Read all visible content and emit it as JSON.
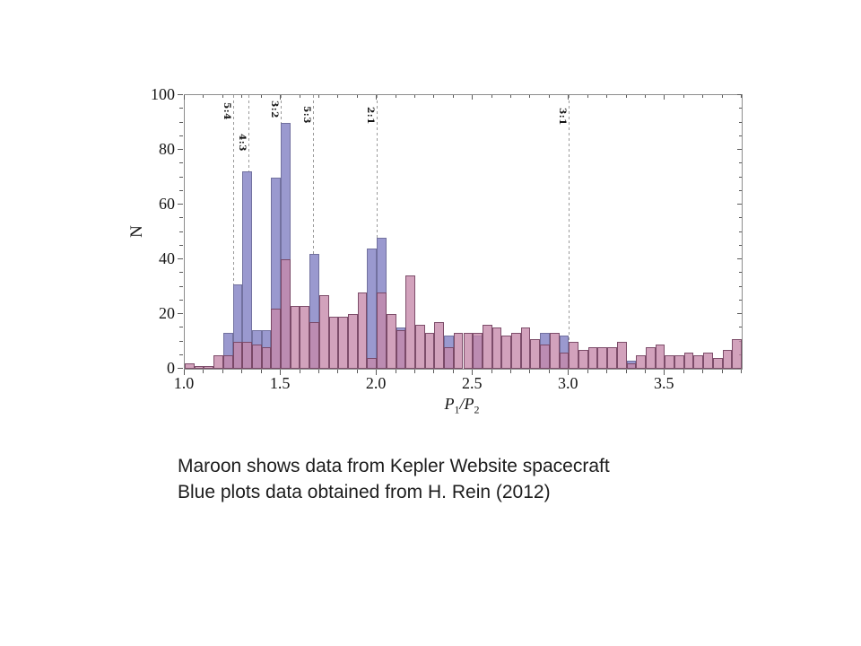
{
  "chart_data": {
    "type": "bar",
    "subtype": "overlaid-histogram",
    "title": "",
    "xlabel": "P1/P2",
    "xlabel_parts": {
      "p1_base": "P",
      "p1_sub": "1",
      "divider": "/",
      "p2_base": "P",
      "p2_sub": "2"
    },
    "ylabel": "N",
    "bin_start": 1.0,
    "bin_width": 0.05,
    "xlim": [
      1.0,
      3.9
    ],
    "ylim": [
      0,
      100
    ],
    "grid": false,
    "legend_position": "none (described in caption below figure)",
    "x_major_ticks": [
      1.0,
      1.5,
      2.0,
      2.5,
      3.0,
      3.5
    ],
    "x_tick_labels": [
      "1.0",
      "1.5",
      "2.0",
      "2.5",
      "3.0",
      "3.5"
    ],
    "x_minor_tick_step": 0.1,
    "y_major_ticks": [
      0,
      20,
      40,
      60,
      80,
      100
    ],
    "y_tick_labels": [
      "0",
      "20",
      "40",
      "60",
      "80",
      "100"
    ],
    "y_minor_tick_step": 5,
    "series": [
      {
        "name": "Kepler Website spacecraft (maroon)",
        "color": "#c588a9",
        "edge_color": "#6e3e5c",
        "values": [
          2,
          1,
          1,
          5,
          5,
          10,
          10,
          9,
          8,
          22,
          40,
          23,
          23,
          17,
          27,
          19,
          19,
          20,
          28,
          4,
          28,
          20,
          14,
          34,
          16,
          13,
          17,
          8,
          13,
          13,
          13,
          16,
          15,
          12,
          13,
          15,
          11,
          9,
          13,
          6,
          10,
          7,
          8,
          8,
          8,
          10,
          2,
          5,
          8,
          9,
          5,
          5,
          6,
          5,
          6,
          4,
          7,
          11
        ]
      },
      {
        "name": "H. Rein (2012) (blue)",
        "color": "#9a99cf",
        "edge_color": "#72719f",
        "values": [
          0,
          0,
          0,
          0,
          13,
          31,
          72,
          14,
          14,
          70,
          90,
          0,
          0,
          42,
          0,
          0,
          0,
          0,
          0,
          44,
          48,
          0,
          15,
          0,
          0,
          0,
          0,
          12,
          0,
          0,
          12,
          0,
          0,
          0,
          0,
          0,
          0,
          13,
          0,
          12,
          0,
          0,
          0,
          0,
          0,
          0,
          3,
          0,
          0,
          0,
          0,
          0,
          0,
          0,
          0,
          0,
          0,
          0
        ]
      }
    ],
    "resonances": [
      {
        "label": "5:4",
        "value": 1.25
      },
      {
        "label": "4:3",
        "value": 1.3333
      },
      {
        "label": "3:2",
        "value": 1.5
      },
      {
        "label": "5:3",
        "value": 1.6667
      },
      {
        "label": "2:1",
        "value": 2.0
      },
      {
        "label": "3:1",
        "value": 3.0
      }
    ],
    "dashed_line_color": "#9a9a9a",
    "frame_color": "#8d8d8d"
  },
  "caption": {
    "line1": "Maroon shows data from Kepler Website spacecraft",
    "line2": "Blue plots data obtained from H. Rein (2012)"
  }
}
